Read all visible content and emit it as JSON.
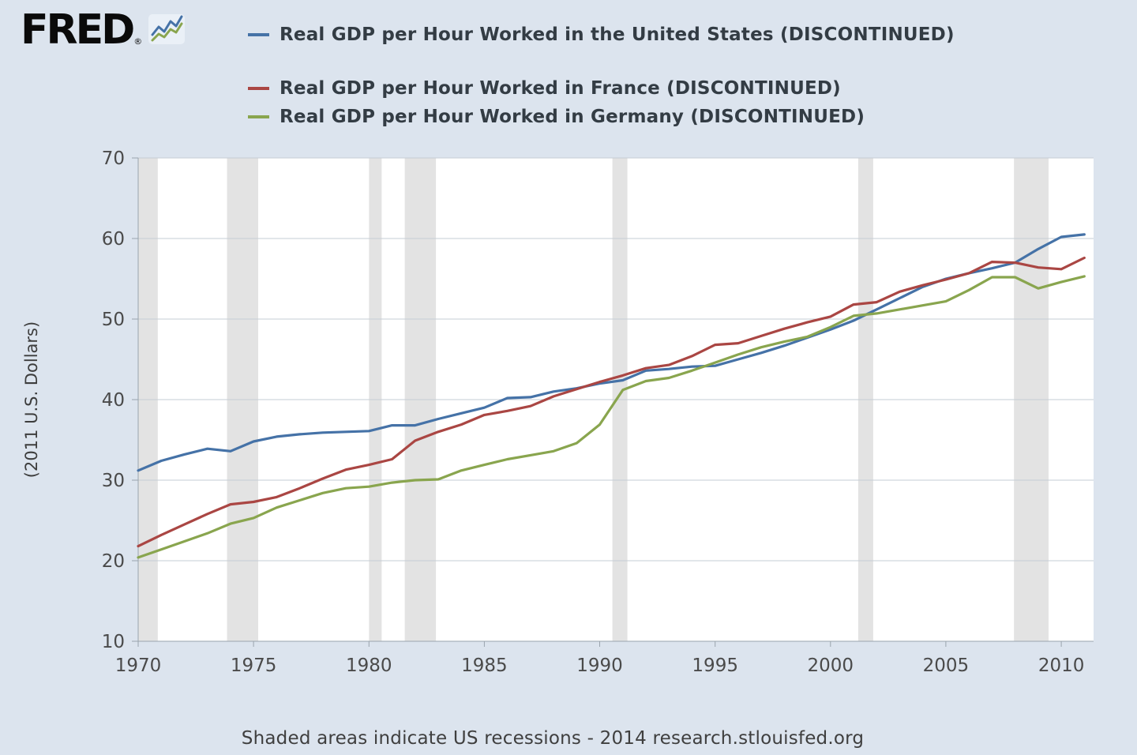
{
  "logo": {
    "text": "FRED",
    "registered": "®",
    "icon": "fred-sparkline-icon"
  },
  "footer": {
    "note": "Shaded areas indicate US recessions - 2014 research.stlouisfed.org"
  },
  "colors": {
    "background": "#dce4ee",
    "plot_background": "#ffffff",
    "gridline": "#c6cdd4",
    "recession_band": "#e3e3e3",
    "axis_text": "#4a4a4a",
    "legend_text": "#333c44",
    "us_series": "#4572a7",
    "france_series": "#aa4643",
    "germany_series": "#89a54e"
  },
  "chart_data": {
    "type": "line",
    "title": "",
    "xlabel": "",
    "ylabel": "(2011 U.S. Dollars)",
    "ylim": [
      10,
      70
    ],
    "x_range": [
      1970,
      2011.4
    ],
    "y_ticks": [
      10,
      20,
      30,
      40,
      50,
      60,
      70
    ],
    "x_ticks": [
      1970,
      1975,
      1980,
      1985,
      1990,
      1995,
      2000,
      2005,
      2010
    ],
    "grid": true,
    "legend_position": "top",
    "recession_color": "#e3e3e3",
    "recession_bands": [
      [
        1970.0,
        1970.85
      ],
      [
        1973.85,
        1975.2
      ],
      [
        1980.0,
        1980.55
      ],
      [
        1981.55,
        1982.9
      ],
      [
        1990.55,
        1991.2
      ],
      [
        2001.2,
        2001.85
      ],
      [
        2007.95,
        2009.45
      ]
    ],
    "x": [
      1970,
      1971,
      1972,
      1973,
      1974,
      1975,
      1976,
      1977,
      1978,
      1979,
      1980,
      1981,
      1982,
      1983,
      1984,
      1985,
      1986,
      1987,
      1988,
      1989,
      1990,
      1991,
      1992,
      1993,
      1994,
      1995,
      1996,
      1997,
      1998,
      1999,
      2000,
      2001,
      2002,
      2003,
      2004,
      2005,
      2006,
      2007,
      2008,
      2009,
      2010,
      2011
    ],
    "series": [
      {
        "name": "Real GDP per Hour Worked in the United States (DISCONTINUED)",
        "color": "#4572a7",
        "values": [
          31.2,
          32.4,
          33.2,
          33.9,
          33.6,
          34.8,
          35.4,
          35.7,
          35.9,
          36.0,
          36.1,
          36.8,
          36.8,
          37.6,
          38.3,
          39.0,
          40.2,
          40.3,
          41.0,
          41.4,
          42.0,
          42.4,
          43.6,
          43.8,
          44.1,
          44.2,
          45.0,
          45.8,
          46.7,
          47.7,
          48.7,
          49.8,
          51.2,
          52.6,
          54.0,
          55.0,
          55.7,
          56.3,
          57.0,
          58.7,
          60.2,
          60.5
        ]
      },
      {
        "name": "Real GDP per Hour Worked in France (DISCONTINUED)",
        "color": "#aa4643",
        "values": [
          21.8,
          23.2,
          24.5,
          25.8,
          27.0,
          27.3,
          27.9,
          29.0,
          30.2,
          31.3,
          31.9,
          32.6,
          34.9,
          36.0,
          36.9,
          38.1,
          38.6,
          39.2,
          40.4,
          41.3,
          42.2,
          43.0,
          43.9,
          44.3,
          45.4,
          46.8,
          47.0,
          47.9,
          48.8,
          49.6,
          50.3,
          51.8,
          52.1,
          53.4,
          54.2,
          54.9,
          55.7,
          57.1,
          57.0,
          56.4,
          56.2,
          57.6
        ]
      },
      {
        "name": "Real GDP per Hour Worked in Germany (DISCONTINUED)",
        "color": "#89a54e",
        "values": [
          20.4,
          21.4,
          22.4,
          23.4,
          24.6,
          25.3,
          26.6,
          27.5,
          28.4,
          29.0,
          29.2,
          29.7,
          30.0,
          30.1,
          31.2,
          31.9,
          32.6,
          33.1,
          33.6,
          34.6,
          36.9,
          41.2,
          42.3,
          42.7,
          43.6,
          44.6,
          45.6,
          46.5,
          47.2,
          47.8,
          49.0,
          50.4,
          50.7,
          51.2,
          51.7,
          52.2,
          53.6,
          55.2,
          55.2,
          53.8,
          54.6,
          55.3
        ]
      }
    ]
  }
}
